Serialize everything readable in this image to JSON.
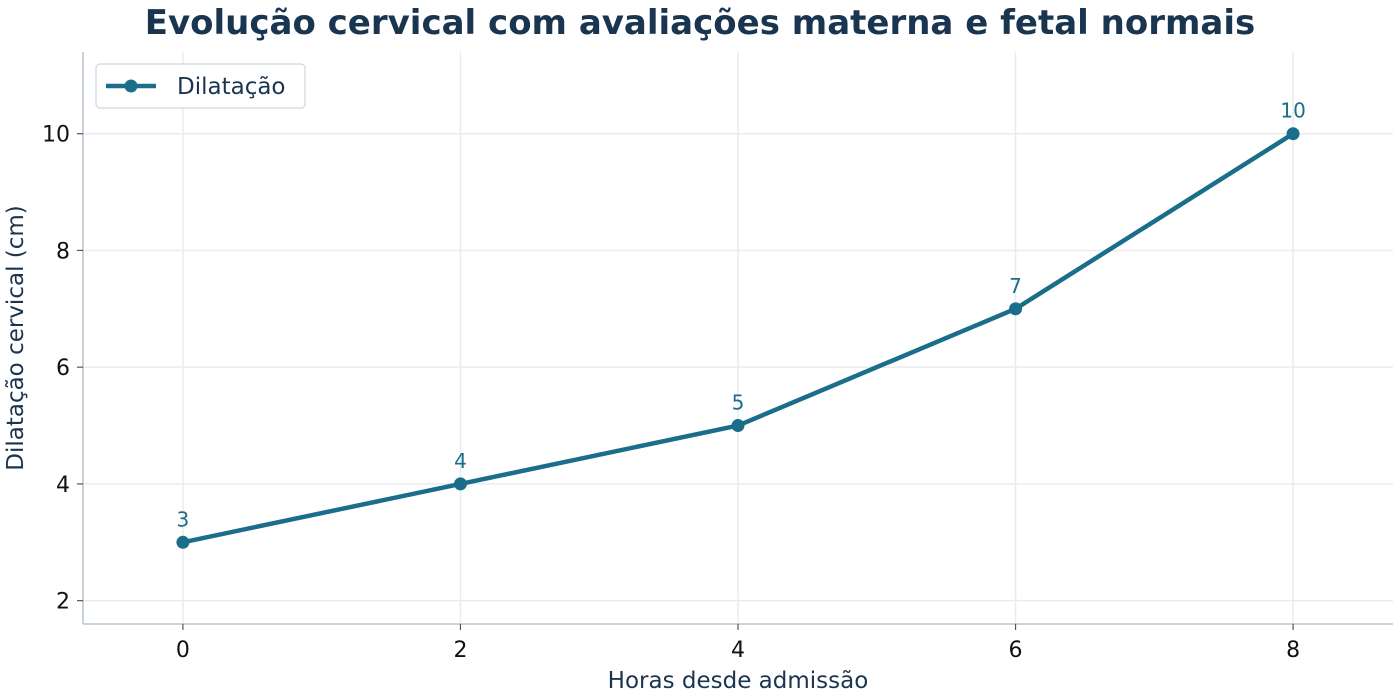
{
  "chart_data": {
    "type": "line",
    "title": "Evolução cervical com avaliações materna e fetal normais",
    "xlabel": "Horas desde admissão",
    "ylabel": "Dilatação cervical (cm)",
    "x": [
      0,
      2,
      4,
      6,
      8
    ],
    "series": [
      {
        "name": "Dilatação",
        "values": [
          3,
          4,
          5,
          7,
          10
        ],
        "color": "#1a6e8a"
      }
    ],
    "data_labels": [
      "3",
      "4",
      "5",
      "7",
      "10"
    ],
    "xticks": [
      0,
      2,
      4,
      6,
      8
    ],
    "yticks": [
      2,
      4,
      6,
      8,
      10
    ],
    "xlim": [
      -0.72,
      8.72
    ],
    "ylim": [
      1.6,
      11.4
    ],
    "grid": true,
    "legend_position": "top-left",
    "colors": {
      "title": "#1a3550",
      "axis": "#b9c6d0",
      "grid": "#e9ecef",
      "line": "#1a6e8a"
    }
  }
}
